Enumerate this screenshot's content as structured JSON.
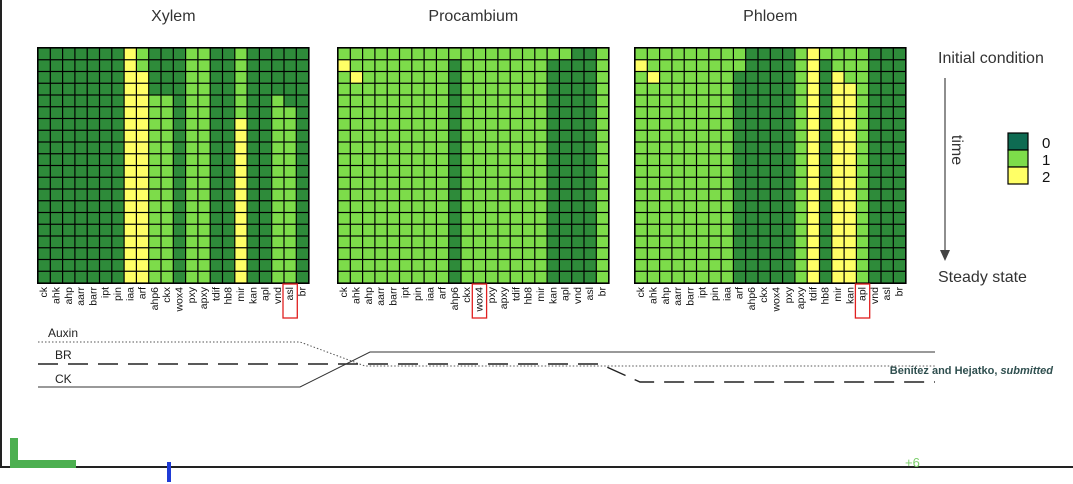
{
  "chart_data": {
    "type": "heatmap",
    "legend": [
      {
        "label": "0",
        "color": "#2e8b3a"
      },
      {
        "label": "1",
        "color": "#7ddc4a"
      },
      {
        "label": "2",
        "color": "#ffff66"
      }
    ],
    "legend_dark": "#0e6b52",
    "side_labels": {
      "top": "Initial condition",
      "axis": "time",
      "bottom": "Steady state"
    },
    "rows": 20,
    "panels": [
      {
        "title": "Xylem",
        "genes": [
          "ck",
          "ahk",
          "ahp",
          "aarr",
          "barr",
          "ipt",
          "pin",
          "iaa",
          "arf",
          "ahp6",
          "ckx",
          "wox4",
          "pxy",
          "apxy",
          "tdif",
          "hb8",
          "mir",
          "kan",
          "apl",
          "vnd",
          "asl",
          "br"
        ],
        "highlight": [
          "asl"
        ],
        "levels": [
          0,
          0,
          0,
          0,
          0,
          0,
          0,
          2,
          2,
          1,
          1,
          0,
          1,
          1,
          0,
          0,
          2,
          0,
          0,
          1,
          1,
          0
        ]
      },
      {
        "title": "Procambium",
        "genes": [
          "ck",
          "ahk",
          "ahp",
          "aarr",
          "barr",
          "ipt",
          "pin",
          "iaa",
          "arf",
          "ahp6",
          "ckx",
          "wox4",
          "pxy",
          "apxy",
          "tdif",
          "hb8",
          "mir",
          "kan",
          "apl",
          "vnd",
          "asl",
          "br"
        ],
        "highlight": [
          "wox4"
        ],
        "levels": [
          1,
          1,
          1,
          1,
          1,
          1,
          1,
          1,
          1,
          0,
          1,
          1,
          1,
          1,
          1,
          1,
          1,
          0,
          0,
          0,
          0,
          1
        ]
      },
      {
        "title": "Phloem",
        "genes": [
          "ck",
          "ahk",
          "ahp",
          "aarr",
          "barr",
          "ipt",
          "pin",
          "iaa",
          "arf",
          "ahp6",
          "ckx",
          "wox4",
          "pxy",
          "apxy",
          "tdif",
          "hb8",
          "mir",
          "kan",
          "apl",
          "vnd",
          "asl",
          "br"
        ],
        "highlight": [
          "apl"
        ],
        "levels": [
          1,
          1,
          1,
          1,
          1,
          1,
          1,
          1,
          0,
          0,
          0,
          0,
          0,
          1,
          2,
          0,
          2,
          2,
          1,
          0,
          0,
          0
        ]
      }
    ],
    "signal_lines": [
      {
        "label": "Auxin",
        "style": "dotted"
      },
      {
        "label": "BR",
        "style": "dashed"
      },
      {
        "label": "CK",
        "style": "solid"
      }
    ]
  },
  "credit": {
    "authors": "Benitez and Hejatko, ",
    "status": "submitted"
  },
  "footer": {
    "page_fragment": "+6"
  }
}
